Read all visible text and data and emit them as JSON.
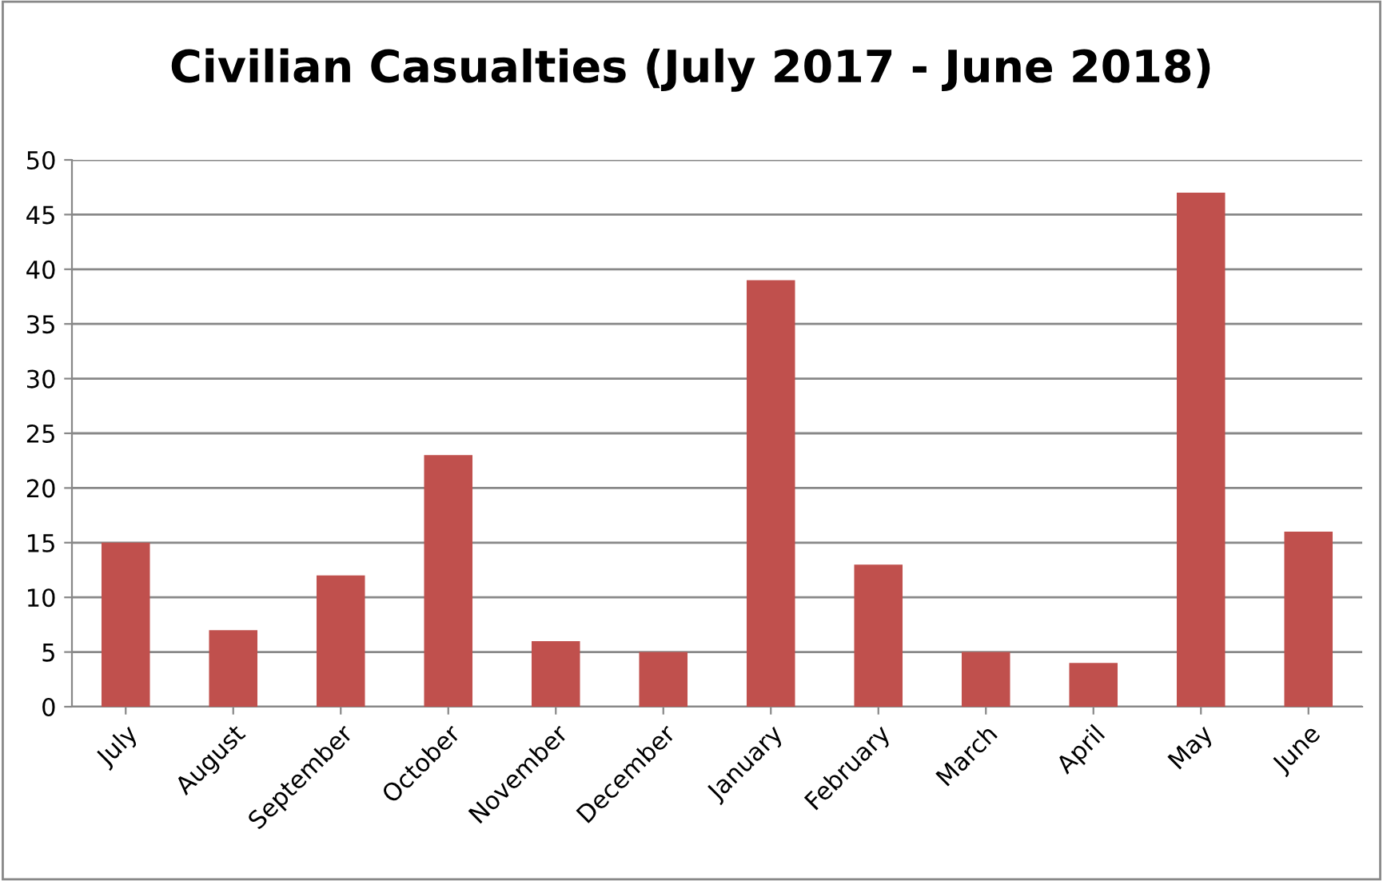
{
  "chart_data": {
    "type": "bar",
    "title": "Civilian Casualties (July 2017 - June 2018)",
    "categories": [
      "July",
      "August",
      "September",
      "October",
      "November",
      "December",
      "January",
      "February",
      "March",
      "April",
      "May",
      "June"
    ],
    "values": [
      15,
      7,
      12,
      23,
      6,
      5,
      39,
      13,
      5,
      4,
      47,
      16
    ],
    "color": "#c0504d",
    "ylim": [
      0,
      50
    ],
    "yticks": [
      0,
      5,
      10,
      15,
      20,
      25,
      30,
      35,
      40,
      45,
      50
    ],
    "grid": "y",
    "legend": false
  }
}
